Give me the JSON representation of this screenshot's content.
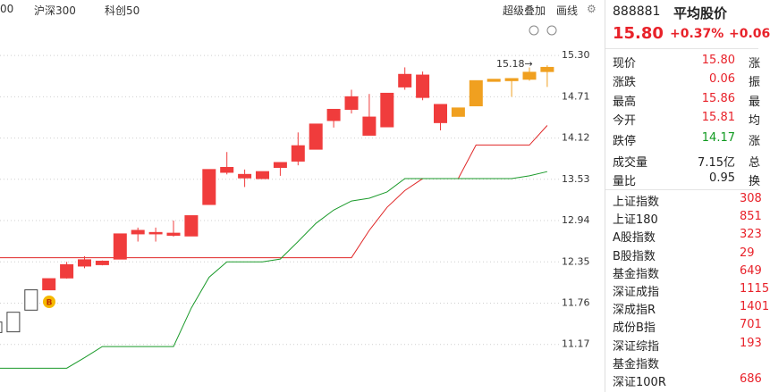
{
  "top_bar": {
    "tabs": [
      "00",
      "沪深300",
      "科创50"
    ],
    "tools": [
      "超级叠加",
      "画线"
    ]
  },
  "chart_data": {
    "type": "candlestick",
    "open": [
      11.34,
      11.35,
      11.66,
      11.95,
      12.12,
      12.29,
      12.31,
      12.39,
      12.75,
      12.75,
      12.73,
      12.72,
      13.17,
      13.63,
      13.55,
      13.54,
      13.7,
      13.79,
      13.96,
      14.37,
      14.53,
      14.16,
      14.28,
      14.85,
      14.7,
      14.34,
      14.43,
      14.58,
      14.93,
      14.94,
      14.96,
      15.07
    ],
    "high": [
      11.49,
      11.63,
      11.95,
      12.11,
      12.35,
      12.43,
      12.37,
      12.75,
      12.84,
      12.84,
      12.94,
      13.01,
      13.67,
      13.92,
      13.67,
      13.64,
      13.77,
      14.2,
      14.32,
      14.53,
      14.81,
      14.75,
      14.76,
      15.13,
      15.07,
      14.6,
      14.55,
      14.94,
      14.96,
      14.97,
      15.13,
      15.16
    ],
    "low": [
      11.34,
      11.35,
      11.66,
      11.95,
      12.11,
      12.26,
      12.3,
      12.39,
      12.64,
      12.64,
      12.71,
      12.72,
      13.17,
      13.6,
      13.42,
      13.54,
      13.58,
      13.73,
      13.96,
      14.27,
      14.47,
      14.16,
      14.28,
      14.81,
      14.66,
      14.23,
      14.43,
      14.58,
      14.93,
      14.71,
      14.94,
      14.85
    ],
    "close": [
      11.49,
      11.63,
      11.95,
      12.11,
      12.31,
      12.38,
      12.36,
      12.75,
      12.8,
      12.77,
      12.76,
      13.01,
      13.67,
      13.7,
      13.6,
      13.64,
      13.77,
      14.01,
      14.32,
      14.53,
      14.71,
      14.42,
      14.76,
      15.03,
      15.02,
      14.6,
      14.55,
      14.94,
      14.96,
      14.97,
      15.06,
      15.13
    ],
    "colors": [
      "#ffffff",
      "#ffffff",
      "#ffffff",
      "#f03c3c",
      "#f03c3c",
      "#f03c3c",
      "#f03c3c",
      "#f03c3c",
      "#f03c3c",
      "#f03c3c",
      "#f03c3c",
      "#f03c3c",
      "#f03c3c",
      "#f03c3c",
      "#f03c3c",
      "#f03c3c",
      "#f03c3c",
      "#f03c3c",
      "#f03c3c",
      "#f03c3c",
      "#f03c3c",
      "#f03c3c",
      "#f03c3c",
      "#f03c3c",
      "#f03c3c",
      "#f03c3c",
      "#f0a020",
      "#f0a020",
      "#f0a020",
      "#f0a020",
      "#f0a020",
      "#f0a020"
    ],
    "series": [
      {
        "color": "#e02828",
        "values": [
          12.41,
          12.41,
          12.41,
          12.41,
          12.41,
          12.41,
          12.41,
          12.41,
          12.41,
          12.41,
          12.41,
          12.41,
          12.41,
          12.41,
          12.41,
          12.41,
          12.41,
          12.41,
          12.41,
          12.41,
          12.41,
          12.8,
          13.13,
          13.37,
          13.54,
          13.54,
          13.54,
          14.02,
          14.02,
          14.02,
          14.02,
          14.3
        ]
      },
      {
        "color": "#1a9a2a",
        "values": [
          10.83,
          10.83,
          10.83,
          10.83,
          10.83,
          10.98,
          11.14,
          11.14,
          11.14,
          11.14,
          11.14,
          11.69,
          12.13,
          12.35,
          12.35,
          12.35,
          12.39,
          12.64,
          12.9,
          13.09,
          13.22,
          13.26,
          13.35,
          13.54,
          13.54,
          13.54,
          13.54,
          13.54,
          13.54,
          13.54,
          13.58,
          13.64
        ]
      }
    ],
    "ylim": [
      10.49,
      15.71
    ],
    "yticks": [
      11.17,
      11.76,
      12.35,
      12.94,
      13.53,
      14.12,
      14.71,
      {
        "value": 15.3,
        "label": "15.30"
      }
    ],
    "grid": true,
    "annotations": [
      "15.18→",
      "B"
    ]
  },
  "quote": {
    "code": "888881",
    "name": "平均股价",
    "price": "15.80",
    "change_pct": "+0.37%",
    "change": "+0.06",
    "rows": [
      [
        "现价",
        "15.80",
        "涨"
      ],
      [
        "涨跌",
        "0.06",
        "振"
      ],
      [
        "最高",
        "15.86",
        "最"
      ],
      [
        "今开",
        "15.81",
        "均"
      ],
      [
        "跌停",
        "14.17",
        "涨"
      ],
      [
        "成交量",
        "7.15亿",
        "总"
      ],
      [
        "量比",
        "0.95",
        "换"
      ]
    ],
    "indices": [
      [
        "上证指数",
        "308"
      ],
      [
        "上证180",
        "851"
      ],
      [
        "A股指数",
        "323"
      ],
      [
        "B股指数",
        "29"
      ],
      [
        "基金指数",
        "649"
      ],
      [
        "深证成指",
        "1115"
      ],
      [
        "深成指R",
        "1401"
      ],
      [
        "成份B指",
        "701"
      ],
      [
        "深证综指",
        "193"
      ],
      [
        "基金指数"
      ],
      [
        "深证100R",
        "686"
      ]
    ]
  }
}
